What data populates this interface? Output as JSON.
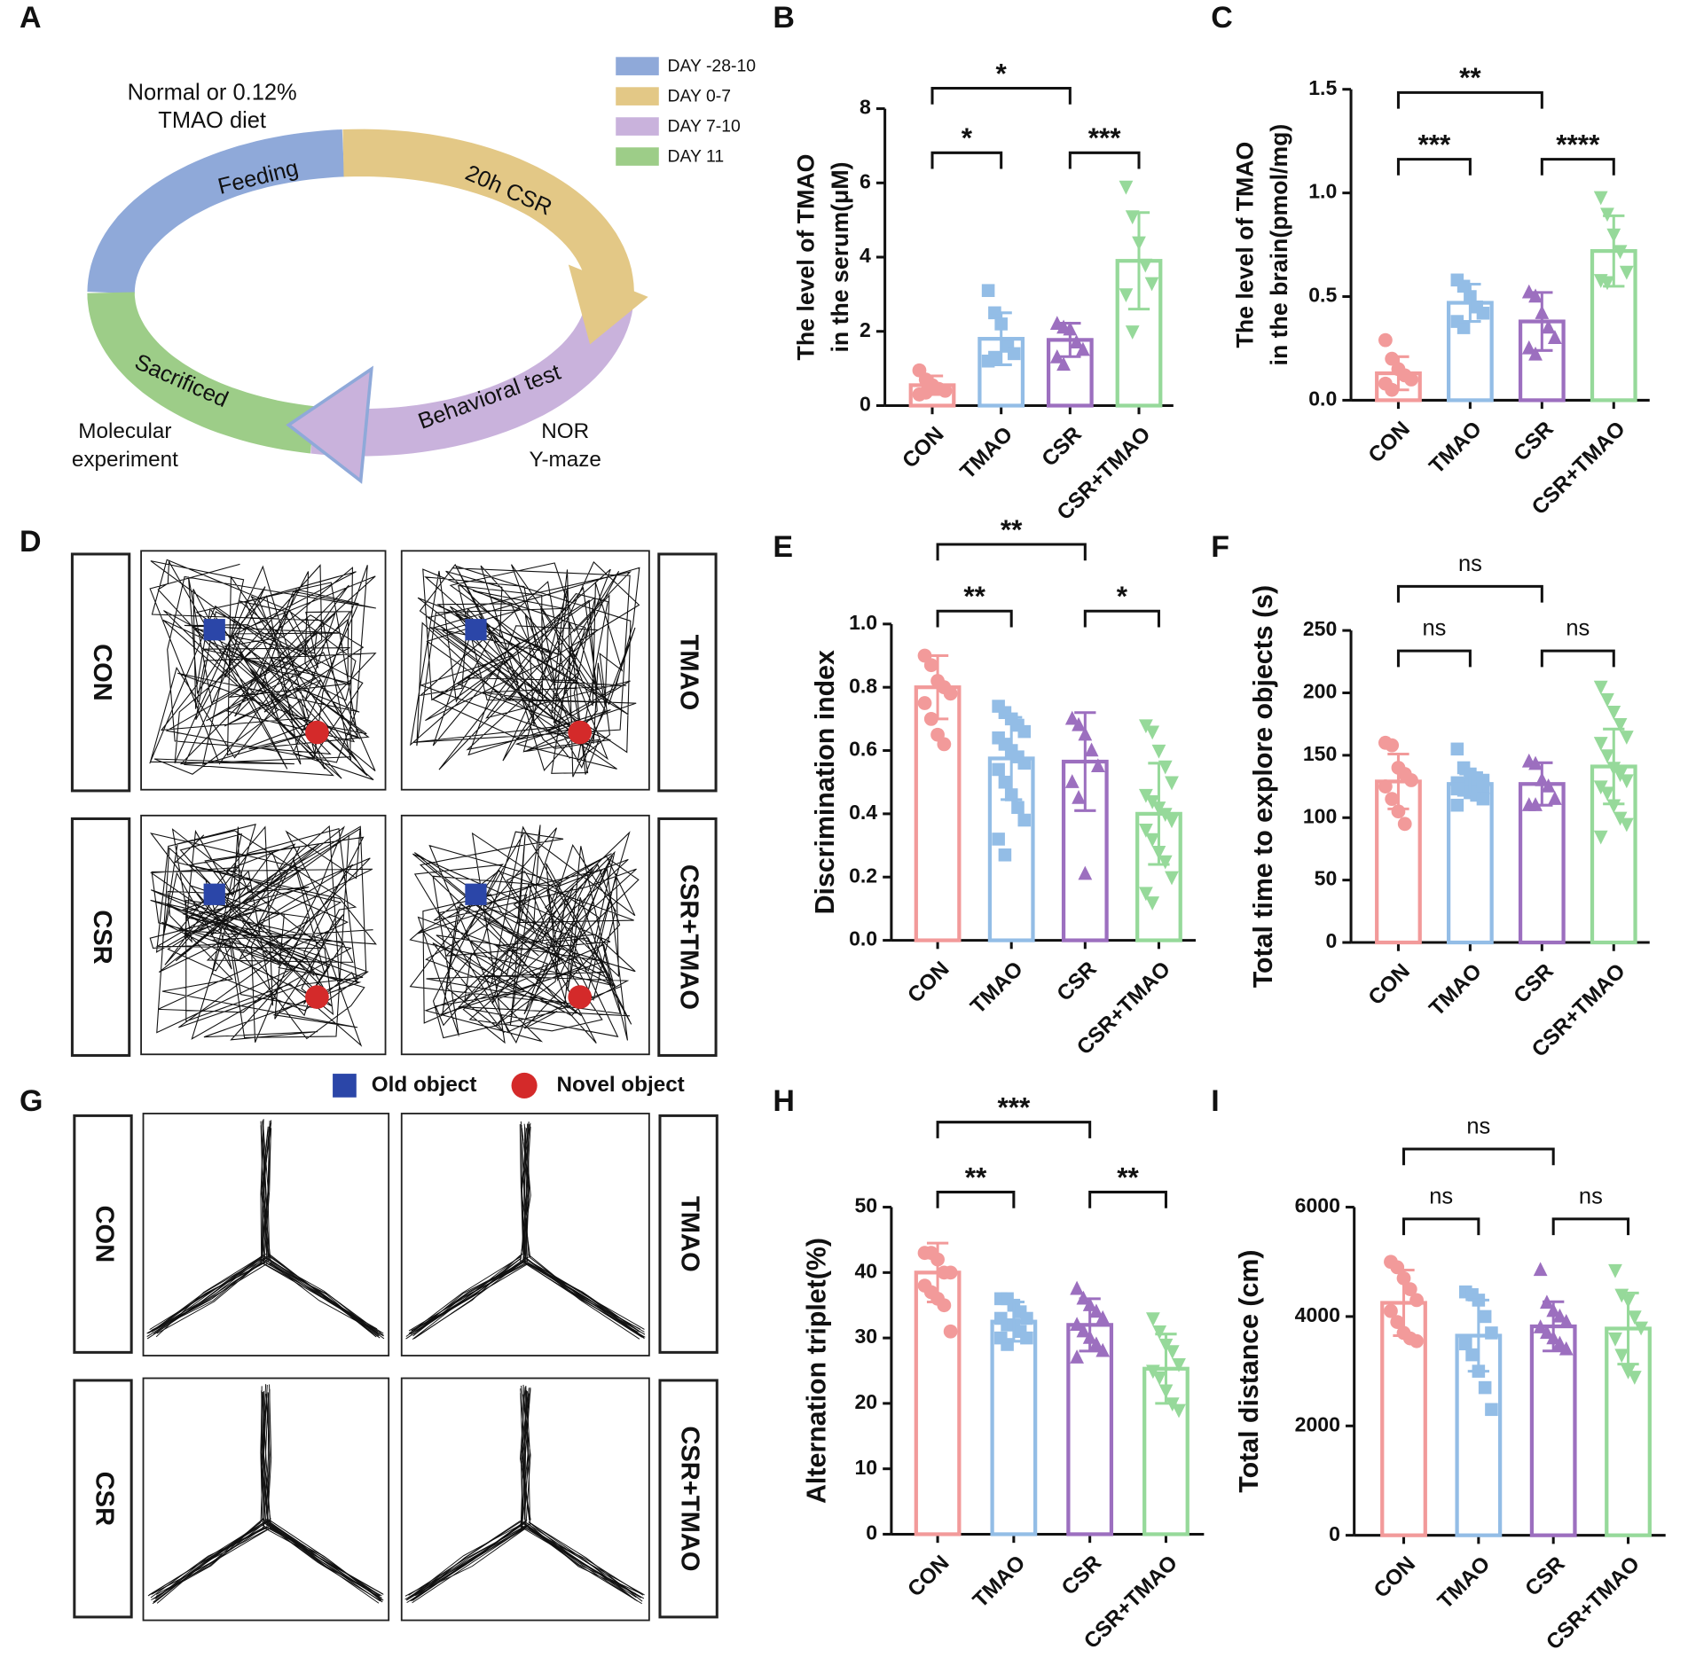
{
  "panel_labels": [
    "A",
    "B",
    "C",
    "D",
    "E",
    "F",
    "G",
    "H",
    "I"
  ],
  "diagram": {
    "diet": [
      "Normal or 0.12%",
      "TMAO diet"
    ],
    "legend": [
      {
        "label": "DAY -28-10",
        "color": "#8fa9d9"
      },
      {
        "label": "DAY 0-7",
        "color": "#e3c886"
      },
      {
        "label": "DAY 7-10",
        "color": "#c9b2dc"
      },
      {
        "label": "DAY 11",
        "color": "#9dcd88"
      }
    ],
    "stages": [
      "Feeding",
      "20h CSR",
      "Behavioral test",
      "Sacrificed"
    ],
    "left_note": [
      "Molecular",
      "experiment"
    ],
    "right_note": [
      "NOR",
      "Y-maze"
    ]
  },
  "nor": {
    "groups": [
      "CON",
      "TMAO",
      "CSR",
      "CSR+TMAO"
    ],
    "legend": [
      "Old object",
      "Novel object"
    ],
    "colors": [
      "#2b46a8",
      "#d42a2a"
    ]
  },
  "ymaze": {
    "groups": [
      "CON",
      "TMAO",
      "CSR",
      "CSR+TMAO"
    ]
  },
  "chart_data": [
    {
      "type": "bar",
      "ylabel": [
        "The level of TMAO",
        "in the serum(μM)"
      ],
      "categories": [
        "CON",
        "TMAO",
        "CSR",
        "CSR+TMAO"
      ],
      "values": [
        0.55,
        1.8,
        1.77,
        3.9
      ],
      "errors": [
        0.25,
        0.7,
        0.45,
        1.3
      ],
      "points": [
        [
          0.95,
          0.7,
          0.55,
          0.45,
          0.4,
          0.3,
          0.35
        ],
        [
          3.1,
          2.5,
          2.2,
          1.6,
          1.4,
          1.2,
          1.3
        ],
        [
          2.2,
          2.1,
          2.05,
          1.7,
          1.5,
          1.3,
          1.1
        ],
        [
          5.9,
          5.1,
          4.4,
          3.8,
          3.3,
          3.0,
          2.0
        ]
      ],
      "colors": [
        "#f29a9a",
        "#93bde6",
        "#9c6fbf",
        "#96d99a"
      ],
      "markers": [
        "circle",
        "square",
        "triangle-up",
        "triangle-down"
      ],
      "ylim": [
        0,
        8
      ],
      "yticks": [
        0,
        2,
        4,
        6,
        8
      ],
      "comparisons": [
        {
          "groups": [
            0,
            1
          ],
          "label": "*"
        },
        {
          "groups": [
            2,
            3
          ],
          "label": "***"
        },
        {
          "groups": [
            0,
            2
          ],
          "label": "*"
        }
      ]
    },
    {
      "type": "bar",
      "ylabel": [
        "The level of TMAO",
        "in the brain(pmol/mg)"
      ],
      "categories": [
        "CON",
        "TMAO",
        "CSR",
        "CSR+TMAO"
      ],
      "values": [
        0.13,
        0.47,
        0.38,
        0.72
      ],
      "errors": [
        0.08,
        0.09,
        0.14,
        0.17
      ],
      "points": [
        [
          0.29,
          0.2,
          0.15,
          0.12,
          0.1,
          0.08,
          0.05
        ],
        [
          0.58,
          0.55,
          0.5,
          0.45,
          0.42,
          0.38,
          0.35
        ],
        [
          0.52,
          0.5,
          0.42,
          0.35,
          0.3,
          0.25,
          0.22
        ],
        [
          0.98,
          0.9,
          0.8,
          0.72,
          0.62,
          0.58,
          0.57
        ]
      ],
      "colors": [
        "#f29a9a",
        "#93bde6",
        "#9c6fbf",
        "#96d99a"
      ],
      "markers": [
        "circle",
        "square",
        "triangle-up",
        "triangle-down"
      ],
      "ylim": [
        0,
        1.5
      ],
      "yticks": [
        {
          "value": 0,
          "label": "0.0"
        },
        0.5,
        {
          "value": 1,
          "label": "1.0"
        },
        1.5
      ],
      "comparisons": [
        {
          "groups": [
            0,
            1
          ],
          "label": "***"
        },
        {
          "groups": [
            2,
            3
          ],
          "label": "****"
        },
        {
          "groups": [
            0,
            2
          ],
          "label": "**"
        }
      ]
    },
    {
      "type": "bar",
      "ylabel": "Discrimination index",
      "categories": [
        "CON",
        "TMAO",
        "CSR",
        "CSR+TMAO"
      ],
      "values": [
        0.8,
        0.575,
        0.565,
        0.4
      ],
      "errors": [
        0.1,
        0.13,
        0.155,
        0.16
      ],
      "points": [
        [
          0.9,
          0.87,
          0.82,
          0.8,
          0.78,
          0.75,
          0.7,
          0.65,
          0.62
        ],
        [
          0.74,
          0.72,
          0.7,
          0.68,
          0.66,
          0.64,
          0.62,
          0.6,
          0.58,
          0.56,
          0.54,
          0.5,
          0.46,
          0.42,
          0.38,
          0.32,
          0.27
        ],
        [
          0.7,
          0.68,
          0.65,
          0.6,
          0.55,
          0.5,
          0.45,
          0.21
        ],
        [
          0.68,
          0.66,
          0.6,
          0.55,
          0.5,
          0.46,
          0.44,
          0.42,
          0.4,
          0.38,
          0.35,
          0.32,
          0.28,
          0.25,
          0.2,
          0.15,
          0.12
        ]
      ],
      "colors": [
        "#f29a9a",
        "#93bde6",
        "#9c6fbf",
        "#96d99a"
      ],
      "markers": [
        "circle",
        "square",
        "triangle-up",
        "triangle-down"
      ],
      "ylim": [
        0,
        1
      ],
      "yticks": [
        {
          "value": 0,
          "label": "0.0"
        },
        0.2,
        0.4,
        0.6,
        0.8,
        {
          "value": 1,
          "label": "1.0"
        }
      ],
      "comparisons": [
        {
          "groups": [
            0,
            1
          ],
          "label": "**"
        },
        {
          "groups": [
            2,
            3
          ],
          "label": "*"
        },
        {
          "groups": [
            0,
            2
          ],
          "label": "**"
        }
      ]
    },
    {
      "type": "bar",
      "ylabel": "Total time to explore objects (s)",
      "categories": [
        "CON",
        "TMAO",
        "CSR",
        "CSR+TMAO"
      ],
      "values": [
        129,
        127,
        127,
        141
      ],
      "errors": [
        22,
        8,
        17,
        30
      ],
      "points": [
        [
          160,
          158,
          140,
          135,
          130,
          125,
          115,
          105,
          95
        ],
        [
          155,
          140,
          135,
          132,
          130,
          128,
          127,
          126,
          125,
          124,
          123,
          122,
          120,
          118,
          115,
          110
        ],
        [
          145,
          143,
          130,
          125,
          115,
          110,
          110
        ],
        [
          205,
          195,
          185,
          175,
          165,
          160,
          150,
          140,
          135,
          130,
          125,
          120,
          110,
          100,
          95,
          85
        ]
      ],
      "colors": [
        "#f29a9a",
        "#93bde6",
        "#9c6fbf",
        "#96d99a"
      ],
      "markers": [
        "circle",
        "square",
        "triangle-up",
        "triangle-down"
      ],
      "ylim": [
        0,
        250
      ],
      "yticks": [
        0,
        50,
        100,
        150,
        200,
        250
      ],
      "comparisons": [
        {
          "groups": [
            0,
            1
          ],
          "label": "ns"
        },
        {
          "groups": [
            2,
            3
          ],
          "label": "ns"
        },
        {
          "groups": [
            0,
            2
          ],
          "label": "ns"
        }
      ]
    },
    {
      "type": "bar",
      "ylabel": "Alternation triplet(%)",
      "categories": [
        "CON",
        "TMAO",
        "CSR",
        "CSR+TMAO"
      ],
      "values": [
        40,
        32.5,
        32,
        25.3
      ],
      "errors": [
        4.5,
        3,
        4,
        5.3
      ],
      "points": [
        [
          43,
          43,
          42,
          40,
          40,
          38,
          37,
          36,
          35,
          31
        ],
        [
          36,
          36,
          35,
          34,
          33,
          33,
          32,
          32,
          31,
          30,
          30,
          29
        ],
        [
          37.5,
          36,
          35,
          34,
          33,
          32,
          31,
          30,
          29,
          28,
          27
        ],
        [
          33,
          31,
          29,
          28,
          26,
          25,
          24,
          22,
          20,
          19
        ]
      ],
      "colors": [
        "#f29a9a",
        "#93bde6",
        "#9c6fbf",
        "#96d99a"
      ],
      "markers": [
        "circle",
        "square",
        "triangle-up",
        "triangle-down"
      ],
      "ylim": [
        0,
        50
      ],
      "yticks": [
        0,
        10,
        20,
        30,
        40,
        50
      ],
      "comparisons": [
        {
          "groups": [
            0,
            1
          ],
          "label": "**"
        },
        {
          "groups": [
            2,
            3
          ],
          "label": "**"
        },
        {
          "groups": [
            0,
            2
          ],
          "label": "***"
        }
      ]
    },
    {
      "type": "bar",
      "ylabel": "Total distance (cm)",
      "categories": [
        "CON",
        "TMAO",
        "CSR",
        "CSR+TMAO"
      ],
      "values": [
        4250,
        3650,
        3820,
        3780
      ],
      "errors": [
        600,
        650,
        450,
        650
      ],
      "points": [
        [
          5000,
          4900,
          4700,
          4500,
          4300,
          4100,
          3900,
          3700,
          3600,
          3550
        ],
        [
          4450,
          4400,
          4300,
          4000,
          3700,
          3500,
          3300,
          3000,
          2700,
          2300
        ],
        [
          4850,
          4250,
          4100,
          4000,
          3900,
          3800,
          3700,
          3600,
          3500,
          3400
        ],
        [
          4850,
          4400,
          4300,
          4000,
          3800,
          3600,
          3300,
          3000,
          2900
        ]
      ],
      "colors": [
        "#f29a9a",
        "#93bde6",
        "#9c6fbf",
        "#96d99a"
      ],
      "markers": [
        "circle",
        "square",
        "triangle-up",
        "triangle-down"
      ],
      "ylim": [
        0,
        6000
      ],
      "yticks": [
        0,
        2000,
        4000,
        6000
      ],
      "comparisons": [
        {
          "groups": [
            0,
            1
          ],
          "label": "ns"
        },
        {
          "groups": [
            2,
            3
          ],
          "label": "ns"
        },
        {
          "groups": [
            0,
            2
          ],
          "label": "ns"
        }
      ]
    }
  ]
}
